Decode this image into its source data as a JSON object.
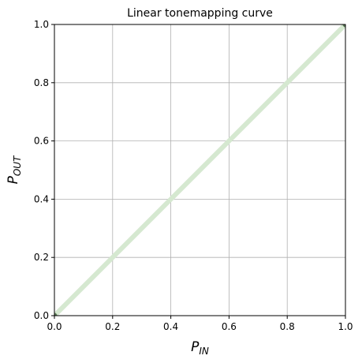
{
  "chart_data": {
    "type": "line",
    "title": "Linear tonemapping curve",
    "xlabel": {
      "main": "P",
      "sub": "IN"
    },
    "ylabel": {
      "main": "P",
      "sub": "OUT"
    },
    "xlim": [
      0.0,
      1.0
    ],
    "ylim": [
      0.0,
      1.0
    ],
    "xticks": [
      "0.0",
      "0.2",
      "0.4",
      "0.6",
      "0.8",
      "1.0"
    ],
    "yticks": [
      "0.0",
      "0.2",
      "0.4",
      "0.6",
      "0.8",
      "1.0"
    ],
    "grid": true,
    "series": [
      {
        "x": [
          0.0,
          1.0
        ],
        "y": [
          0.0,
          1.0
        ],
        "color": "#d5e8d0",
        "style": "line"
      }
    ],
    "control_points": [
      {
        "x": 0.0,
        "y": 0.0,
        "color": "#4a6b47"
      },
      {
        "x": 1.0,
        "y": 1.0,
        "color": "#4a6b47"
      }
    ]
  }
}
